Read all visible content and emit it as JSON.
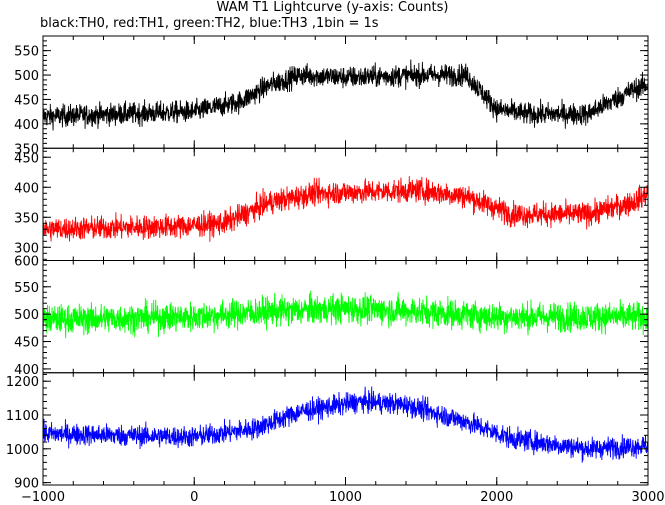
{
  "chart_data": {
    "type": "line",
    "title": "WAM T1 Lightcurve (y-axis: Counts)",
    "subtitle": "black:TH0, red:TH1, green:TH2, blue:TH3 ,1bin = 1s",
    "xlim": [
      -1000,
      3000
    ],
    "x_ticks": [
      "-1000",
      "0",
      "1000",
      "2000",
      "3000"
    ],
    "panels": [
      {
        "color": "#000000",
        "ylim": [
          350,
          580
        ],
        "y_ticks": [
          "400",
          "450",
          "500",
          "550"
        ],
        "y_edge_label": "350",
        "baseline": [
          [
            -1000,
            415
          ],
          [
            0,
            425
          ],
          [
            300,
            445
          ],
          [
            500,
            480
          ],
          [
            700,
            500
          ],
          [
            1000,
            495
          ],
          [
            1500,
            500
          ],
          [
            1800,
            500
          ],
          [
            2000,
            430
          ],
          [
            2200,
            420
          ],
          [
            2600,
            420
          ],
          [
            2900,
            470
          ],
          [
            3000,
            480
          ]
        ],
        "noise": 32
      },
      {
        "color": "#ff0000",
        "ylim": [
          278,
          465
        ],
        "y_ticks": [
          "300",
          "350",
          "400",
          "450"
        ],
        "y_edge_label": "",
        "baseline": [
          [
            -1000,
            330
          ],
          [
            -100,
            335
          ],
          [
            200,
            340
          ],
          [
            500,
            375
          ],
          [
            800,
            390
          ],
          [
            1500,
            395
          ],
          [
            1800,
            385
          ],
          [
            2100,
            355
          ],
          [
            2600,
            355
          ],
          [
            2900,
            375
          ],
          [
            3000,
            390
          ]
        ],
        "noise": 28
      },
      {
        "color": "#00ff00",
        "ylim": [
          393,
          598
        ],
        "y_ticks": [
          "400",
          "450",
          "500",
          "550"
        ],
        "y_edge_label": "600",
        "baseline": [
          [
            -1000,
            490
          ],
          [
            0,
            495
          ],
          [
            500,
            505
          ],
          [
            1000,
            510
          ],
          [
            1500,
            505
          ],
          [
            2000,
            495
          ],
          [
            3000,
            495
          ]
        ],
        "noise": 38
      },
      {
        "color": "#0000ff",
        "ylim": [
          893,
          1225
        ],
        "y_ticks": [
          "900",
          "1000",
          "1100",
          "1200"
        ],
        "y_edge_label": "",
        "baseline": [
          [
            -1000,
            1045
          ],
          [
            0,
            1035
          ],
          [
            400,
            1060
          ],
          [
            700,
            1110
          ],
          [
            1100,
            1140
          ],
          [
            1400,
            1130
          ],
          [
            1800,
            1080
          ],
          [
            2100,
            1030
          ],
          [
            2600,
            1000
          ],
          [
            3000,
            1010
          ]
        ],
        "noise": 45
      }
    ]
  }
}
